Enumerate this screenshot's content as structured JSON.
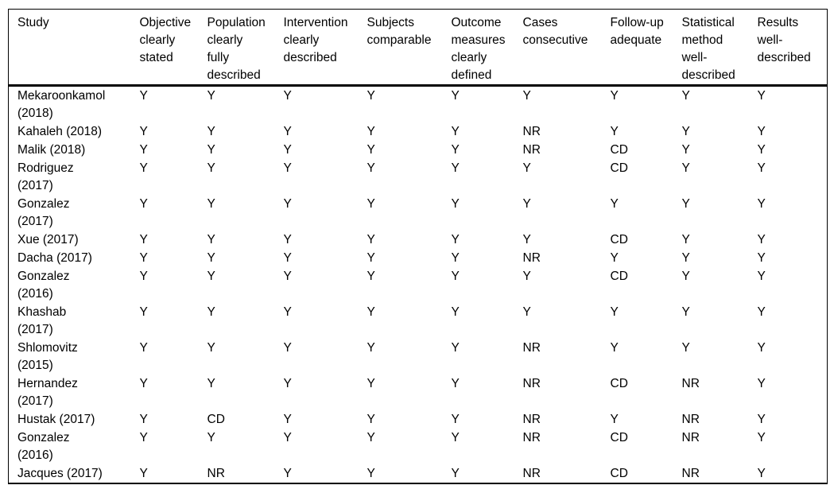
{
  "page": {
    "background_color": "#ffffff",
    "text_color": "#000000",
    "border_color": "#000000"
  },
  "table": {
    "columns": [
      {
        "id": "study",
        "label": "Study"
      },
      {
        "id": "objective",
        "label": "Objective clearly stated"
      },
      {
        "id": "population",
        "label": "Population clearly fully described"
      },
      {
        "id": "intervention",
        "label": "Intervention clearly described"
      },
      {
        "id": "subjects",
        "label": "Subjects comparable"
      },
      {
        "id": "outcome",
        "label": "Outcome measures clearly defined"
      },
      {
        "id": "cases",
        "label": "Cases consecutive"
      },
      {
        "id": "followup",
        "label": "Follow-up adequate"
      },
      {
        "id": "statistical",
        "label": "Statistical method well-described"
      },
      {
        "id": "results",
        "label": "Results well-described"
      }
    ],
    "rows": [
      {
        "study": "Mekaroonkamol (2018)",
        "values": [
          "Y",
          "Y",
          "Y",
          "Y",
          "Y",
          "Y",
          "Y",
          "Y",
          "Y"
        ]
      },
      {
        "study": "Kahaleh (2018)",
        "values": [
          "Y",
          "Y",
          "Y",
          "Y",
          "Y",
          "NR",
          "Y",
          "Y",
          "Y"
        ]
      },
      {
        "study": "Malik (2018)",
        "values": [
          "Y",
          "Y",
          "Y",
          "Y",
          "Y",
          "NR",
          "CD",
          "Y",
          "Y"
        ]
      },
      {
        "study": "Rodriguez (2017)",
        "values": [
          "Y",
          "Y",
          "Y",
          "Y",
          "Y",
          "Y",
          "CD",
          "Y",
          "Y"
        ]
      },
      {
        "study": "Gonzalez (2017)",
        "values": [
          "Y",
          "Y",
          "Y",
          "Y",
          "Y",
          "Y",
          "Y",
          "Y",
          "Y"
        ]
      },
      {
        "study": "Xue (2017)",
        "values": [
          "Y",
          "Y",
          "Y",
          "Y",
          "Y",
          "Y",
          "CD",
          "Y",
          "Y"
        ]
      },
      {
        "study": "Dacha (2017)",
        "values": [
          "Y",
          "Y",
          "Y",
          "Y",
          "Y",
          "NR",
          "Y",
          "Y",
          "Y"
        ]
      },
      {
        "study": "Gonzalez (2016)",
        "values": [
          "Y",
          "Y",
          "Y",
          "Y",
          "Y",
          "Y",
          "CD",
          "Y",
          "Y"
        ]
      },
      {
        "study": "Khashab (2017)",
        "values": [
          "Y",
          "Y",
          "Y",
          "Y",
          "Y",
          "Y",
          "Y",
          "Y",
          "Y"
        ]
      },
      {
        "study": "Shlomovitz (2015)",
        "values": [
          "Y",
          "Y",
          "Y",
          "Y",
          "Y",
          "NR",
          "Y",
          "Y",
          "Y"
        ]
      },
      {
        "study": "Hernandez (2017)",
        "values": [
          "Y",
          "Y",
          "Y",
          "Y",
          "Y",
          "NR",
          "CD",
          "NR",
          "Y"
        ]
      },
      {
        "study": "Hustak (2017)",
        "values": [
          "Y",
          "CD",
          "Y",
          "Y",
          "Y",
          "NR",
          "Y",
          "NR",
          "Y"
        ]
      },
      {
        "study": "Gonzalez (2016)",
        "values": [
          "Y",
          "Y",
          "Y",
          "Y",
          "Y",
          "NR",
          "CD",
          "NR",
          "Y"
        ]
      },
      {
        "study": "Jacques (2017)",
        "values": [
          "Y",
          "NR",
          "Y",
          "Y",
          "Y",
          "NR",
          "CD",
          "NR",
          "Y"
        ]
      }
    ]
  }
}
